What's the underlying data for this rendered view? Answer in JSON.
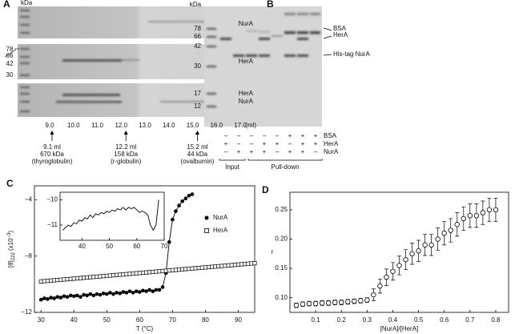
{
  "panel_a": {
    "label": "A",
    "kda": "kDa",
    "markers": [
      "78",
      "66",
      "42",
      "30"
    ],
    "gel_labels": [
      "NurA",
      "HerA",
      "HerA",
      "NurA"
    ],
    "fractions": [
      "9.0",
      "10.0",
      "11.0",
      "12.0",
      "13.0",
      "14.0",
      "15.0",
      "16.0",
      "17.0"
    ],
    "unit": "(ml)",
    "standards": [
      {
        "volume": "9.1 ml",
        "mass": "670 kDa",
        "protein": "(thyroglobulin)"
      },
      {
        "volume": "12.2 ml",
        "mass": "158 kDa",
        "protein": "(r-globulin)"
      },
      {
        "volume": "15.2 ml",
        "mass": "44 kDa",
        "protein": "(ovalbumin)"
      }
    ]
  },
  "panel_b": {
    "label": "B",
    "kda": "kDa",
    "markers": [
      "78",
      "66",
      "42",
      "30",
      "17",
      "12"
    ],
    "bands": [
      "BSA",
      "HerA",
      "His-tag NurA"
    ],
    "rows": [
      {
        "name": "BSA",
        "signs": [
          "–",
          "–",
          "–",
          "–",
          "–",
          "+",
          "+",
          "+"
        ]
      },
      {
        "name": "HerA",
        "signs": [
          "+",
          "–",
          "–",
          "+",
          "+",
          "–",
          "+",
          "+"
        ]
      },
      {
        "name": "NurA",
        "signs": [
          "–",
          "+",
          "+",
          "+",
          "–",
          "+",
          "+",
          "–"
        ]
      }
    ],
    "groups": [
      "Input",
      "Pull-down"
    ]
  },
  "chart_data": [
    {
      "type": "line",
      "label": "C",
      "ylabel": {
        "main": "[θ]",
        "sub": "222",
        "unit": " (x10",
        "sup": "−3",
        "close": ")"
      },
      "xlabel": "T (°C)",
      "xlim": [
        28,
        95
      ],
      "ylim": [
        -12,
        -3
      ],
      "xticks": [
        30,
        40,
        50,
        60,
        70,
        80,
        90
      ],
      "yticks": [
        {
          "value": -4,
          "label": "−4"
        },
        {
          "value": -8,
          "label": "−8"
        },
        {
          "value": -12,
          "label": "−12"
        }
      ],
      "legend": "right",
      "series": [
        {
          "name": "NurA",
          "color": "#000000",
          "marker": "filled-circle",
          "line": true,
          "x": [
            30,
            31,
            32,
            33,
            34,
            35,
            36,
            37,
            38,
            39,
            40,
            41,
            42,
            43,
            44,
            45,
            46,
            47,
            48,
            49,
            50,
            51,
            52,
            53,
            54,
            55,
            56,
            57,
            58,
            59,
            60,
            61,
            62,
            63,
            64,
            65,
            66,
            67,
            68,
            69,
            70,
            71,
            72,
            73,
            74,
            75,
            76
          ],
          "values": [
            -11.1,
            -11.0,
            -11.05,
            -10.95,
            -11.0,
            -10.9,
            -10.95,
            -10.85,
            -10.9,
            -10.8,
            -10.85,
            -10.8,
            -10.9,
            -10.75,
            -10.8,
            -10.7,
            -10.8,
            -10.7,
            -10.75,
            -10.65,
            -10.7,
            -10.6,
            -10.7,
            -10.6,
            -10.65,
            -10.55,
            -10.6,
            -10.5,
            -10.6,
            -10.5,
            -10.55,
            -10.45,
            -10.5,
            -10.4,
            -10.5,
            -10.4,
            -10.4,
            -10.2,
            -9.2,
            -7.0,
            -5.4,
            -4.8,
            -4.4,
            -4.1,
            -3.9,
            -3.7,
            -3.6
          ]
        },
        {
          "name": "HerA",
          "color": "#000000",
          "marker": "open-square",
          "line": false,
          "x": [
            30,
            31,
            32,
            33,
            34,
            35,
            36,
            37,
            38,
            39,
            40,
            41,
            42,
            43,
            44,
            45,
            46,
            47,
            48,
            49,
            50,
            51,
            52,
            53,
            54,
            55,
            56,
            57,
            58,
            59,
            60,
            61,
            62,
            63,
            64,
            65,
            66,
            67,
            68,
            69,
            70,
            71,
            72,
            73,
            74,
            75,
            76,
            77,
            78,
            79,
            80,
            81,
            82,
            83,
            84,
            85,
            86,
            87,
            88,
            89,
            90,
            91,
            92,
            93,
            94,
            95
          ],
          "values": [
            -9.8,
            -9.78,
            -9.76,
            -9.74,
            -9.72,
            -9.7,
            -9.68,
            -9.66,
            -9.64,
            -9.62,
            -9.6,
            -9.58,
            -9.56,
            -9.54,
            -9.52,
            -9.5,
            -9.48,
            -9.46,
            -9.44,
            -9.42,
            -9.4,
            -9.38,
            -9.36,
            -9.34,
            -9.32,
            -9.3,
            -9.28,
            -9.26,
            -9.24,
            -9.22,
            -9.2,
            -9.18,
            -9.16,
            -9.14,
            -9.12,
            -9.1,
            -9.08,
            -9.06,
            -9.04,
            -9.02,
            -9.0,
            -8.98,
            -8.96,
            -8.94,
            -8.92,
            -8.9,
            -8.88,
            -8.86,
            -8.84,
            -8.82,
            -8.8,
            -8.78,
            -8.76,
            -8.74,
            -8.72,
            -8.7,
            -8.68,
            -8.66,
            -8.64,
            -8.62,
            -8.6,
            -8.58,
            -8.56,
            -8.54,
            -8.52,
            -8.5
          ]
        }
      ]
    },
    {
      "type": "line",
      "xlim": [
        32,
        70
      ],
      "ylim": [
        -11.6,
        -9.7
      ],
      "xticks": [
        40,
        50,
        60,
        70
      ],
      "yticks": [
        {
          "value": -10,
          "label": "−10"
        },
        {
          "value": -11,
          "label": "−11"
        }
      ],
      "series": [
        {
          "color": "#000000",
          "marker": "none",
          "line": true,
          "x": [
            33,
            34,
            35,
            36,
            37,
            38,
            39,
            40,
            41,
            42,
            43,
            44,
            45,
            46,
            47,
            48,
            49,
            50,
            51,
            52,
            53,
            54,
            55,
            56,
            57,
            58,
            59,
            60,
            61,
            62,
            63,
            64,
            65,
            66,
            67,
            68
          ],
          "values": [
            -11.2,
            -11.1,
            -11.0,
            -11.05,
            -10.9,
            -10.95,
            -10.8,
            -10.85,
            -10.7,
            -10.75,
            -10.6,
            -10.7,
            -10.55,
            -10.6,
            -10.5,
            -10.55,
            -10.45,
            -10.5,
            -10.4,
            -10.45,
            -10.35,
            -10.4,
            -10.3,
            -10.4,
            -10.3,
            -10.35,
            -10.3,
            -10.4,
            -10.5,
            -10.45,
            -10.5,
            -10.6,
            -11.0,
            -11.2,
            -11.0,
            -10.0
          ]
        }
      ]
    },
    {
      "type": "scatter",
      "label": "D",
      "ylabel": "r",
      "xlabel": "[NurA]/[HerA]",
      "xlim": [
        0,
        0.85
      ],
      "ylim": [
        0.075,
        0.28
      ],
      "xticks": [
        0.1,
        0.2,
        0.3,
        0.4,
        0.5,
        0.6,
        0.7,
        0.8
      ],
      "yticks": [
        {
          "value": 0.1,
          "label": "0.10"
        },
        0.15,
        {
          "value": 0.2,
          "label": "0.20"
        },
        0.25
      ],
      "series": [
        {
          "color": "#000000",
          "marker": "open-circle",
          "line": false,
          "x": [
            0.025,
            0.05,
            0.075,
            0.1,
            0.125,
            0.15,
            0.175,
            0.2,
            0.225,
            0.25,
            0.275,
            0.3,
            0.325,
            0.35,
            0.375,
            0.4,
            0.425,
            0.45,
            0.475,
            0.5,
            0.525,
            0.55,
            0.575,
            0.6,
            0.625,
            0.65,
            0.675,
            0.7,
            0.725,
            0.75,
            0.775,
            0.8
          ],
          "values": [
            0.087,
            0.089,
            0.09,
            0.09,
            0.091,
            0.091,
            0.092,
            0.092,
            0.093,
            0.094,
            0.095,
            0.096,
            0.105,
            0.12,
            0.135,
            0.145,
            0.155,
            0.165,
            0.175,
            0.18,
            0.19,
            0.19,
            0.2,
            0.21,
            0.215,
            0.225,
            0.235,
            0.24,
            0.24,
            0.245,
            0.25,
            0.25
          ],
          "errors": [
            0.004,
            0.004,
            0.004,
            0.004,
            0.004,
            0.004,
            0.004,
            0.004,
            0.004,
            0.004,
            0.004,
            0.004,
            0.01,
            0.012,
            0.014,
            0.015,
            0.016,
            0.017,
            0.018,
            0.018,
            0.018,
            0.018,
            0.019,
            0.02,
            0.02,
            0.02,
            0.02,
            0.02,
            0.02,
            0.02,
            0.02,
            0.02
          ]
        }
      ]
    }
  ]
}
